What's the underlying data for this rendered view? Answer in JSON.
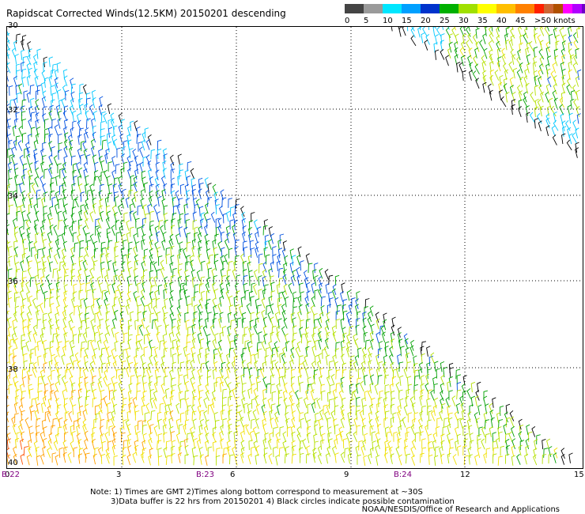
{
  "title": "Rapidscat Corrected Winds(12.5KM) 20150201 descending",
  "legend": {
    "colors": [
      "#444444",
      "#9a9a9a",
      "#00e6ff",
      "#00a0ff",
      "#0033cc",
      "#00b000",
      "#a0e000",
      "#ffff00",
      "#ffbf00",
      "#ff8000",
      "#ff2000",
      "#cc6633",
      "#b05000",
      "#ff00ff",
      "#b000ff",
      "#7000c8"
    ],
    "labels": [
      "0",
      "5",
      "10",
      "15",
      "20",
      "25",
      "30",
      "35",
      "40",
      "45",
      ">50 knots"
    ]
  },
  "map": {
    "lat_labels": [
      "30",
      "32",
      "34",
      "36",
      "38",
      "40"
    ],
    "x_labels": [
      "0",
      "3",
      "6",
      "9",
      "12",
      "15"
    ],
    "date_labels": [
      "B:22",
      "B:23",
      "B:24"
    ]
  },
  "notes": [
    "Note: 1) Times are GMT 2)Times along bottom correspond to measurement at ~30S",
    "3)Data buffer is 22 hrs from 20150201 4) Black circles indicate possible contamination"
  ],
  "credit": "NOAA/NESDIS/Office of Research and Applications"
}
